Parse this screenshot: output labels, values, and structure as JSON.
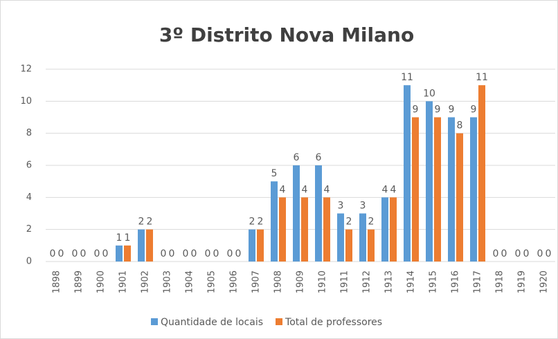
{
  "chart_data": {
    "type": "bar",
    "title": "3º Distrito Nova Milano",
    "categories": [
      "1898",
      "1899",
      "1900",
      "1901",
      "1902",
      "1903",
      "1904",
      "1905",
      "1906",
      "1907",
      "1908",
      "1909",
      "1910",
      "1911",
      "1912",
      "1913",
      "1914",
      "1915",
      "1916",
      "1917",
      "1918",
      "1919",
      "1920"
    ],
    "series": [
      {
        "name": "Quantidade de locais",
        "color": "#5b9bd5",
        "values": [
          0,
          0,
          0,
          1,
          2,
          0,
          0,
          0,
          0,
          2,
          5,
          6,
          6,
          3,
          3,
          4,
          11,
          10,
          9,
          9,
          0,
          0,
          0
        ]
      },
      {
        "name": "Total de professores",
        "color": "#ed7d31",
        "values": [
          0,
          0,
          0,
          1,
          2,
          0,
          0,
          0,
          0,
          2,
          4,
          4,
          4,
          2,
          2,
          4,
          9,
          9,
          8,
          11,
          0,
          0,
          0
        ]
      }
    ],
    "ylim": [
      0,
      12
    ],
    "yticks": [
      0,
      2,
      4,
      6,
      8,
      10,
      12
    ],
    "grid": true,
    "legend": "bottom"
  }
}
